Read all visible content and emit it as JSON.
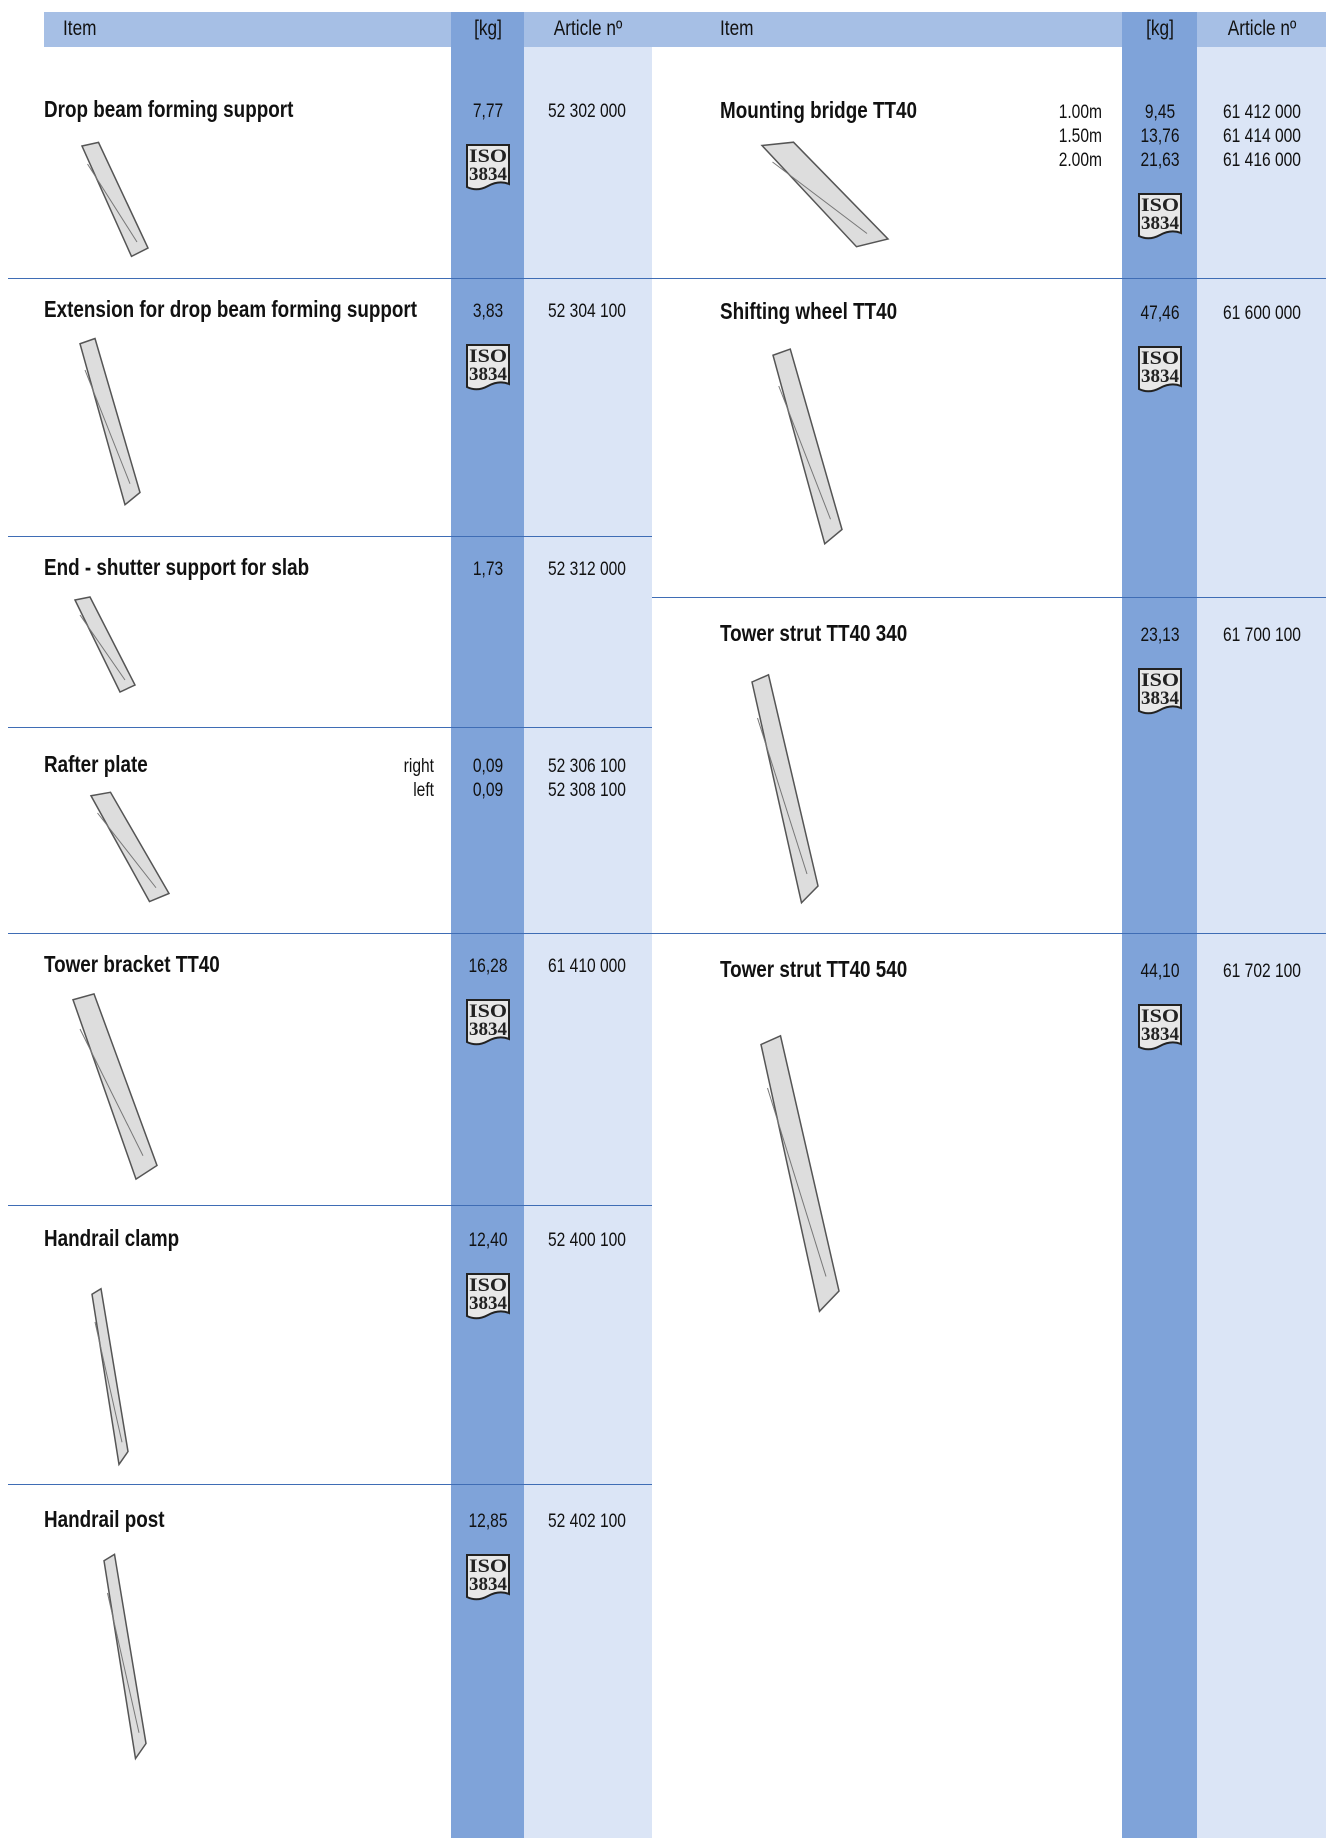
{
  "header": {
    "left": [
      "Item",
      "[kg]",
      "Article nº"
    ],
    "right": [
      "Item",
      "[kg]",
      "Article nº"
    ]
  },
  "iso_badge": [
    "ISO",
    "3834"
  ],
  "left_items": [
    {
      "name": "Drop beam forming support",
      "weight": [
        "7,77"
      ],
      "article": [
        "52 302 000"
      ],
      "iso": true
    },
    {
      "name": "Extension for drop beam forming support",
      "weight": [
        "3,83"
      ],
      "article": [
        "52 304 100"
      ],
      "iso": true
    },
    {
      "name": "End - shutter support for slab",
      "weight": [
        "1,73"
      ],
      "article": [
        "52 312 000"
      ],
      "iso": false
    },
    {
      "name": "Rafter plate",
      "variants": [
        "right",
        "left"
      ],
      "weight": [
        "0,09",
        "0,09"
      ],
      "article": [
        "52 306 100",
        "52 308 100"
      ],
      "iso": false
    },
    {
      "name": "Tower bracket TT40",
      "weight": [
        "16,28"
      ],
      "article": [
        "61 410 000"
      ],
      "iso": true
    },
    {
      "name": "Handrail clamp",
      "weight": [
        "12,40"
      ],
      "article": [
        "52 400 100"
      ],
      "iso": true
    },
    {
      "name": "Handrail post",
      "weight": [
        "12,85"
      ],
      "article": [
        "52 402 100"
      ],
      "iso": true
    }
  ],
  "right_items": [
    {
      "name": "Mounting bridge TT40",
      "variants": [
        "1.00m",
        "1.50m",
        "2.00m"
      ],
      "weight": [
        "9,45",
        "13,76",
        "21,63"
      ],
      "article": [
        "61 412 000",
        "61 414 000",
        "61 416 000"
      ],
      "iso": true
    },
    {
      "name": "Shifting wheel TT40",
      "weight": [
        "47,46"
      ],
      "article": [
        "61 600 000"
      ],
      "iso": true
    },
    {
      "name": "Tower strut TT40 340",
      "weight": [
        "23,13"
      ],
      "article": [
        "61 700 100"
      ],
      "iso": true
    },
    {
      "name": "Tower strut TT40 540",
      "weight": [
        "44,10"
      ],
      "article": [
        "61 702 100"
      ],
      "iso": true
    }
  ]
}
